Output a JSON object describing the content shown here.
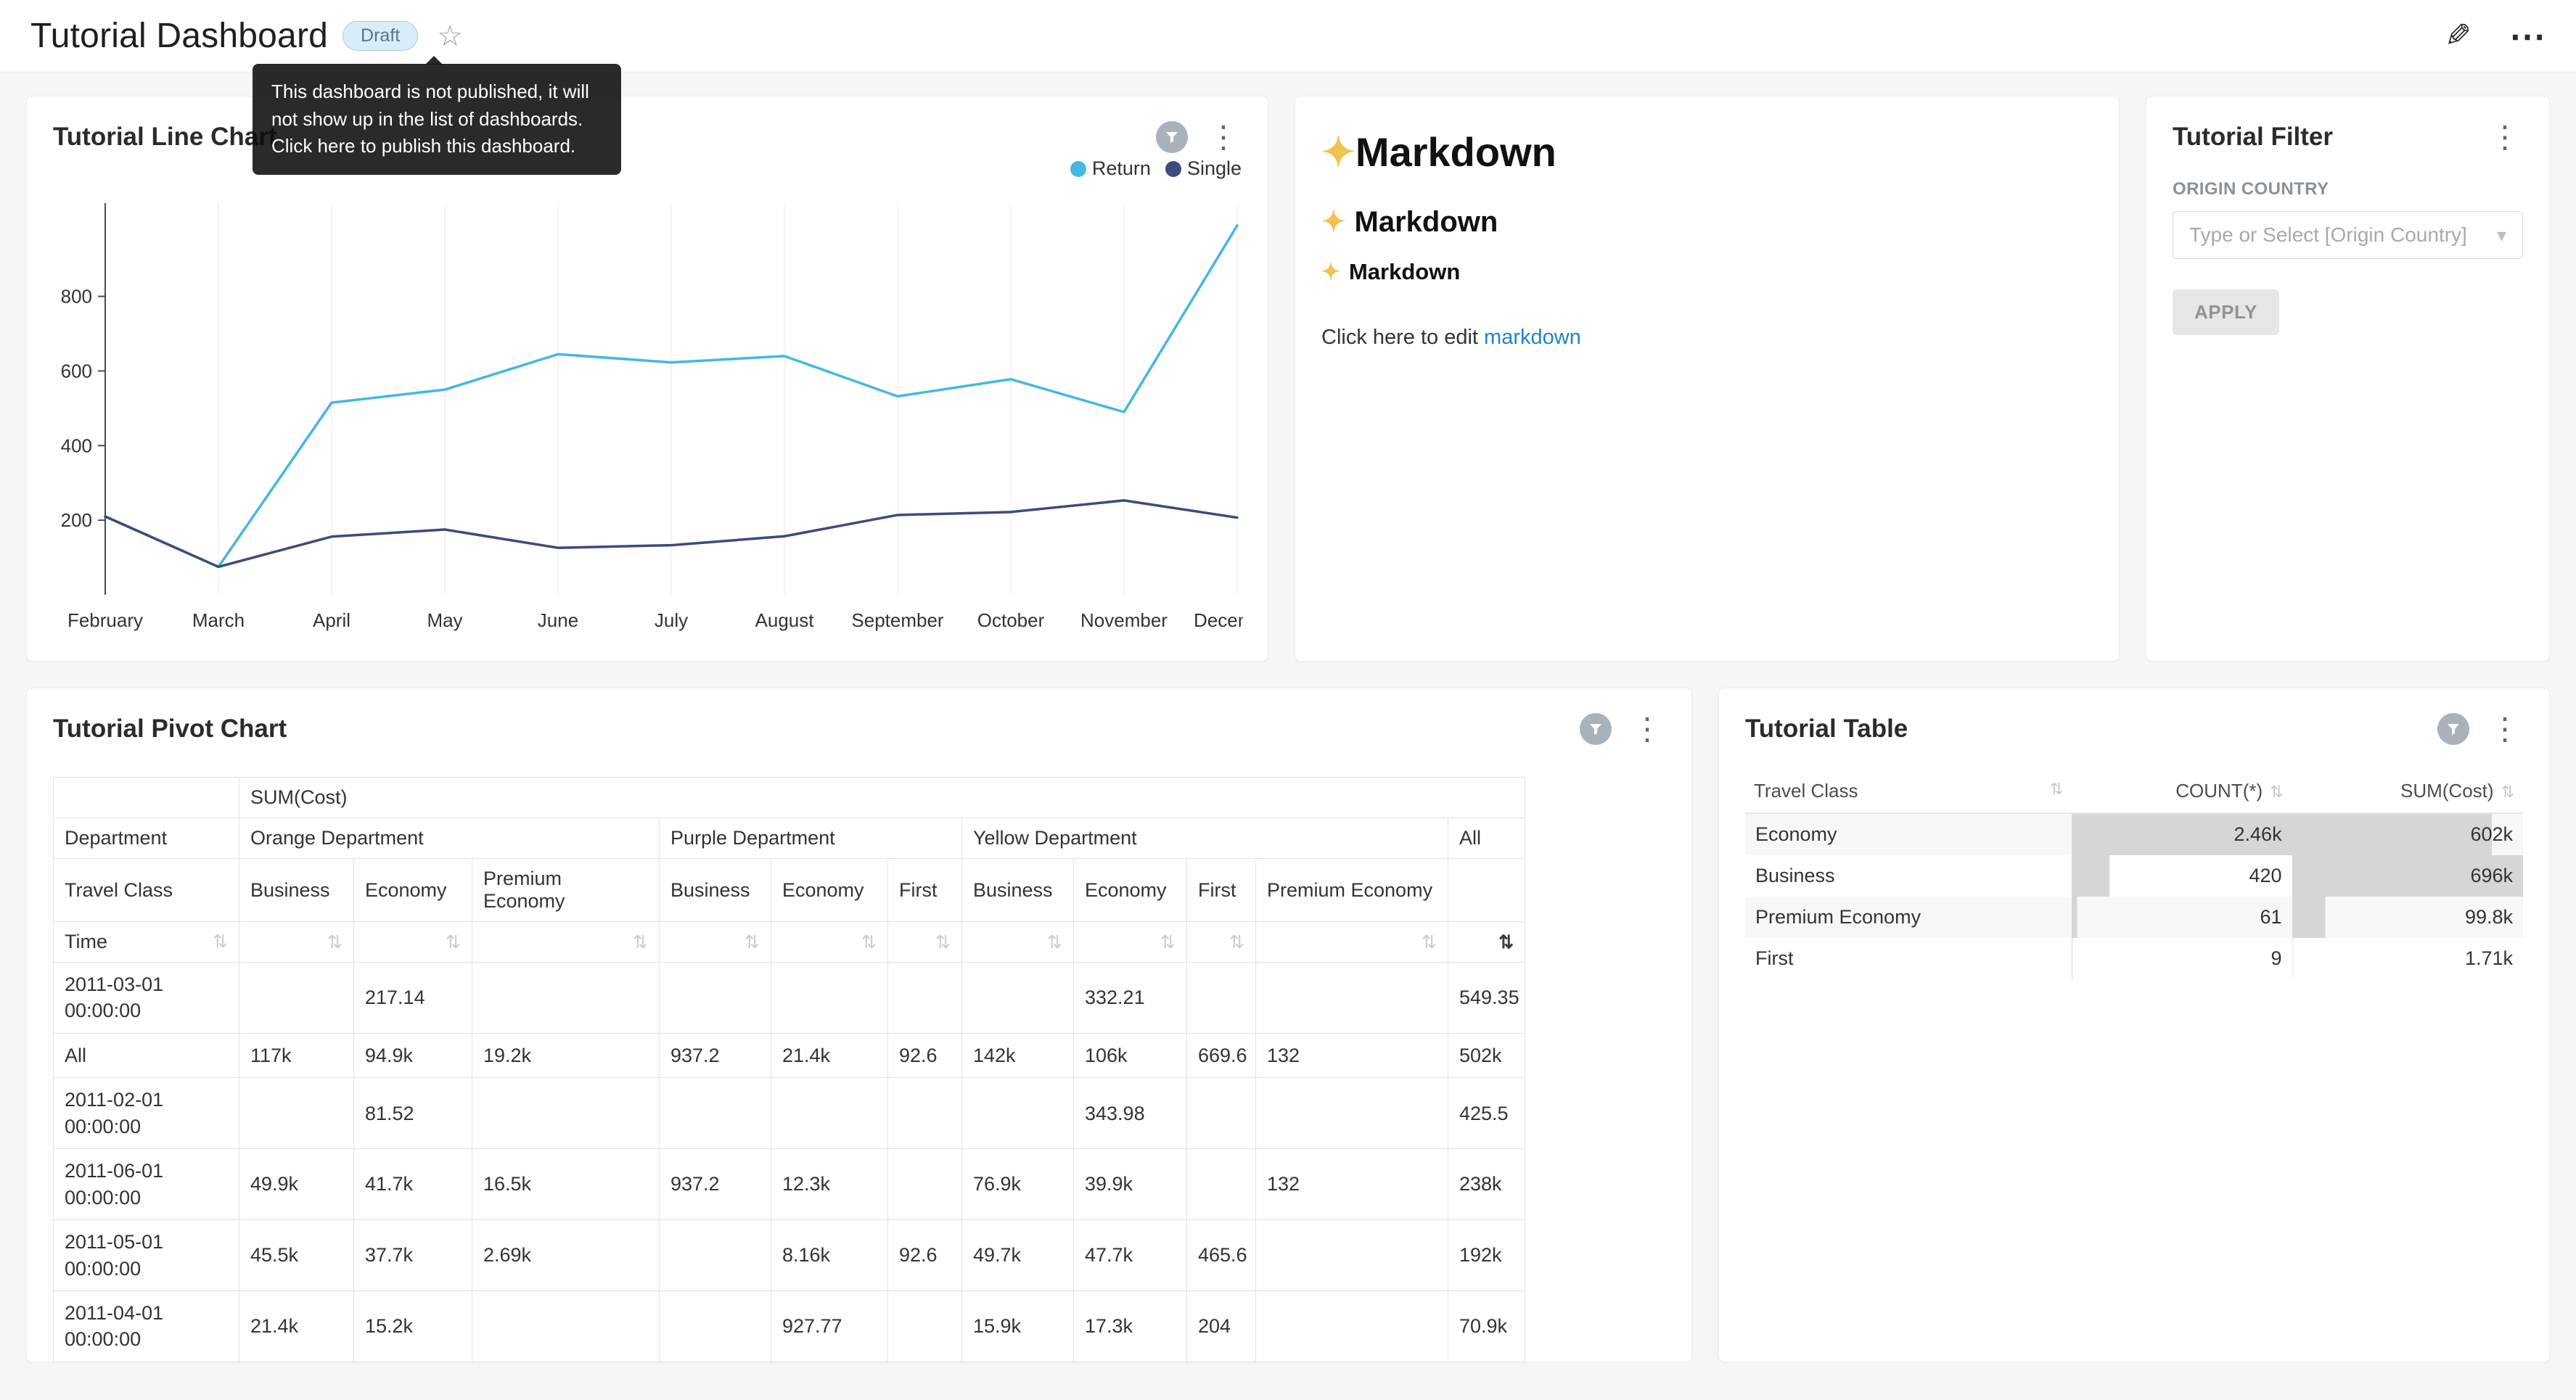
{
  "colors": {
    "badge_bg": "#d9edf8",
    "badge_text": "#51798f",
    "link": "#1f85c3",
    "bar_fill": "#d6d6d6",
    "filter_badge": "#a9b2ba"
  },
  "icons": {
    "star": "☆",
    "edit": "✎",
    "more": "⋯",
    "kebab": "⋮",
    "caret": "▾",
    "sort": "⇅",
    "sort_small": "⇅"
  },
  "header": {
    "title": "Tutorial Dashboard",
    "badge": "Draft",
    "tooltip": "This dashboard is not published, it will not show up in the list of dashboards. Click here to publish this dashboard."
  },
  "line_chart": {
    "title": "Tutorial Line Chart",
    "chart_data": {
      "type": "line",
      "categories": [
        "February",
        "March",
        "April",
        "May",
        "June",
        "July",
        "August",
        "September",
        "October",
        "November",
        "December"
      ],
      "series": [
        {
          "name": "Return",
          "color": "#45b7e2",
          "values": [
            210,
            75,
            515,
            550,
            645,
            623,
            640,
            532,
            578,
            490,
            990
          ]
        },
        {
          "name": "Single",
          "color": "#3d4b7d",
          "values": [
            210,
            75,
            156,
            175,
            126,
            133,
            157,
            214,
            222,
            253,
            207
          ]
        }
      ],
      "yticks": [
        200,
        400,
        600,
        800
      ],
      "ylim": [
        0,
        1050
      ],
      "grid": "vertical",
      "legend_position": "top-right"
    }
  },
  "markdown": {
    "sparkle": "✦",
    "h1": "Markdown",
    "h2": "Markdown",
    "h3": "Markdown",
    "body_prefix": "Click here to edit ",
    "link": "markdown"
  },
  "filter": {
    "title": "Tutorial Filter",
    "field_label": "ORIGIN COUNTRY",
    "select_placeholder": "Type or Select [Origin Country]",
    "apply_label": "APPLY"
  },
  "pivot": {
    "title": "Tutorial Pivot Chart",
    "measure_header": "SUM(Cost)",
    "department_label": "Department",
    "travel_class_label": "Travel Class",
    "time_label": "Time",
    "all_label": "All",
    "groups": [
      {
        "label": "Orange Department",
        "cols": [
          "Business",
          "Economy",
          "Premium Economy"
        ]
      },
      {
        "label": "Purple Department",
        "cols": [
          "Business",
          "Economy",
          "First"
        ]
      },
      {
        "label": "Yellow Department",
        "cols": [
          "Business",
          "Economy",
          "First",
          "Premium Economy"
        ]
      }
    ],
    "rows": [
      {
        "label": "2011-03-01 00:00:00",
        "values": [
          "",
          "217.14",
          "",
          "",
          "",
          "",
          "",
          "332.21",
          "",
          "",
          "549.35"
        ]
      },
      {
        "label": "All",
        "values": [
          "117k",
          "94.9k",
          "19.2k",
          "937.2",
          "21.4k",
          "92.6",
          "142k",
          "106k",
          "669.6",
          "132",
          "502k"
        ]
      },
      {
        "label": "2011-02-01 00:00:00",
        "values": [
          "",
          "81.52",
          "",
          "",
          "",
          "",
          "",
          "343.98",
          "",
          "",
          "425.5"
        ]
      },
      {
        "label": "2011-06-01 00:00:00",
        "values": [
          "49.9k",
          "41.7k",
          "16.5k",
          "937.2",
          "12.3k",
          "",
          "76.9k",
          "39.9k",
          "",
          "132",
          "238k"
        ]
      },
      {
        "label": "2011-05-01 00:00:00",
        "values": [
          "45.5k",
          "37.7k",
          "2.69k",
          "",
          "8.16k",
          "92.6",
          "49.7k",
          "47.7k",
          "465.6",
          "",
          "192k"
        ]
      },
      {
        "label": "2011-04-01 00:00:00",
        "values": [
          "21.4k",
          "15.2k",
          "",
          "",
          "927.77",
          "",
          "15.9k",
          "17.3k",
          "204",
          "",
          "70.9k"
        ]
      }
    ]
  },
  "table": {
    "title": "Tutorial Table",
    "columns": [
      "Travel Class",
      "COUNT(*)",
      "SUM(Cost)"
    ],
    "rows": [
      {
        "travel_class": "Economy",
        "count": "2.46k",
        "sum": "602k"
      },
      {
        "travel_class": "Business",
        "count": "420",
        "sum": "696k"
      },
      {
        "travel_class": "Premium Economy",
        "count": "61",
        "sum": "99.8k"
      },
      {
        "travel_class": "First",
        "count": "9",
        "sum": "1.71k"
      }
    ]
  }
}
